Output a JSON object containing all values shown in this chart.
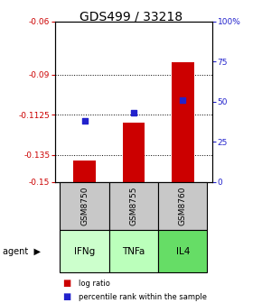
{
  "title": "GDS499 / 33218",
  "samples": [
    "GSM8750",
    "GSM8755",
    "GSM8760"
  ],
  "agents": [
    "IFNg",
    "TNFa",
    "IL4"
  ],
  "log_ratios": [
    -0.138,
    -0.117,
    -0.083
  ],
  "percentile_ranks": [
    38,
    43,
    51
  ],
  "ylim_left": [
    -0.15,
    -0.06
  ],
  "ylim_right": [
    0,
    100
  ],
  "yticks_left": [
    -0.15,
    -0.135,
    -0.1125,
    -0.09,
    -0.06
  ],
  "yticks_right": [
    0,
    25,
    50,
    75,
    100
  ],
  "ytick_labels_left": [
    "-0.15",
    "-0.135",
    "-0.1125",
    "-0.09",
    "-0.06"
  ],
  "ytick_labels_right": [
    "0",
    "25",
    "50",
    "75",
    "100%"
  ],
  "bar_color": "#cc0000",
  "square_color": "#2222cc",
  "sample_bg": "#c8c8c8",
  "agent_colors": [
    "#ccffcc",
    "#bbffbb",
    "#66dd66"
  ]
}
